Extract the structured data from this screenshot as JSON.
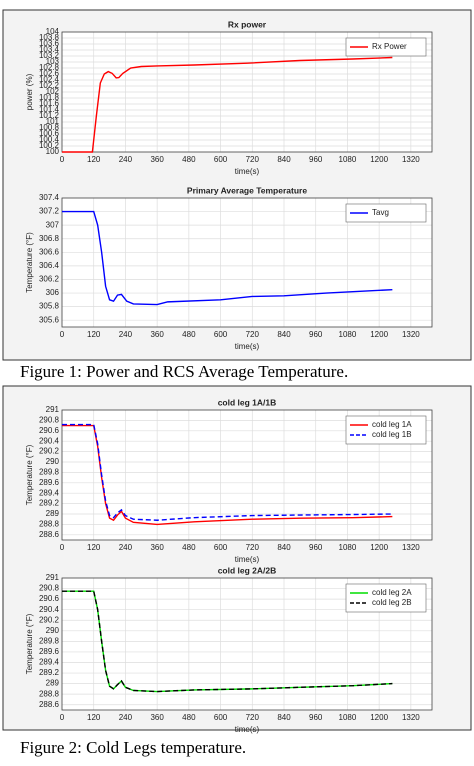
{
  "captions": [
    "Figure 1: Power and RCS Average Temperature.",
    "Figure 2: Cold Legs temperature."
  ],
  "chart_data": [
    {
      "type": "line",
      "title": "Rx power",
      "xlabel": "time(s)",
      "ylabel": "power (%)",
      "x": [
        0,
        115,
        130,
        145,
        160,
        175,
        190,
        205,
        215,
        230,
        260,
        300,
        360,
        500,
        700,
        900,
        1100,
        1250
      ],
      "series": [
        {
          "name": "Rx Power",
          "color": "#ff0000",
          "values": [
            100,
            100,
            101.2,
            102.3,
            102.6,
            102.68,
            102.62,
            102.47,
            102.48,
            102.62,
            102.8,
            102.85,
            102.87,
            102.9,
            102.96,
            103.05,
            103.1,
            103.15
          ]
        }
      ],
      "xlim": [
        0,
        1400
      ],
      "xticks": [
        0,
        120,
        240,
        360,
        480,
        600,
        720,
        840,
        960,
        1080,
        1200,
        1320
      ],
      "ylim": [
        100,
        104
      ],
      "yticks": [
        100,
        100.2,
        100.4,
        100.6,
        100.8,
        101,
        101.2,
        101.4,
        101.6,
        101.8,
        102,
        102.2,
        102.4,
        102.6,
        102.8,
        103,
        103.2,
        103.4,
        103.6,
        103.8,
        104
      ],
      "grid": true,
      "legend": "top-right"
    },
    {
      "type": "line",
      "title": "Primary Average Temperature",
      "xlabel": "time(s)",
      "ylabel": "Temperature (°F)",
      "x": [
        0,
        120,
        135,
        150,
        165,
        180,
        195,
        210,
        225,
        245,
        270,
        360,
        400,
        600,
        720,
        840,
        1000,
        1250
      ],
      "series": [
        {
          "name": "Tavg",
          "color": "#0000ff",
          "values": [
            307.2,
            307.2,
            307.0,
            306.6,
            306.1,
            305.9,
            305.88,
            305.97,
            305.98,
            305.88,
            305.84,
            305.83,
            305.87,
            305.9,
            305.95,
            305.96,
            306,
            306.05
          ]
        }
      ],
      "xlim": [
        0,
        1400
      ],
      "xticks": [
        0,
        120,
        240,
        360,
        480,
        600,
        720,
        840,
        960,
        1080,
        1200,
        1320
      ],
      "ylim": [
        305.5,
        307.4
      ],
      "yticks": [
        305.6,
        305.8,
        306,
        306.2,
        306.4,
        306.6,
        306.8,
        307,
        307.2,
        307.4
      ],
      "grid": true,
      "legend": "top-right"
    },
    {
      "type": "line",
      "title": "cold leg 1A/1B",
      "xlabel": "time(s)",
      "ylabel": "Temperature (°F)",
      "x": [
        0,
        120,
        135,
        150,
        165,
        180,
        195,
        210,
        225,
        240,
        270,
        360,
        500,
        720,
        900,
        1100,
        1250
      ],
      "series": [
        {
          "name": "cold leg 1A",
          "color": "#ff0000",
          "style": "solid",
          "values": [
            290.7,
            290.7,
            290.3,
            289.7,
            289.2,
            288.92,
            288.88,
            288.98,
            289.05,
            288.92,
            288.84,
            288.8,
            288.85,
            288.9,
            288.92,
            288.93,
            288.95
          ]
        },
        {
          "name": "cold leg 1B",
          "color": "#0000ff",
          "style": "dashed",
          "values": [
            290.72,
            290.72,
            290.35,
            289.75,
            289.25,
            288.97,
            288.93,
            289.02,
            289.08,
            288.97,
            288.9,
            288.88,
            288.93,
            288.97,
            288.98,
            288.99,
            289
          ]
        }
      ],
      "xlim": [
        0,
        1400
      ],
      "xticks": [
        0,
        120,
        240,
        360,
        480,
        600,
        720,
        840,
        960,
        1080,
        1200,
        1320
      ],
      "ylim": [
        288.5,
        291
      ],
      "yticks": [
        288.6,
        288.8,
        289,
        289.2,
        289.4,
        289.6,
        289.8,
        290,
        290.2,
        290.4,
        290.6,
        290.8,
        291
      ],
      "grid": true,
      "legend": "top-right"
    },
    {
      "type": "line",
      "title": "cold leg 2A/2B",
      "xlabel": "time(s)",
      "ylabel": "Temperature (°F)",
      "x": [
        0,
        120,
        135,
        150,
        165,
        180,
        195,
        210,
        225,
        240,
        270,
        360,
        500,
        720,
        900,
        1100,
        1250
      ],
      "series": [
        {
          "name": "cold leg 2A",
          "color": "#00dd00",
          "style": "solid",
          "values": [
            290.75,
            290.75,
            290.4,
            289.8,
            289.25,
            288.95,
            288.9,
            288.98,
            289.05,
            288.93,
            288.87,
            288.85,
            288.88,
            288.9,
            288.93,
            288.96,
            289
          ]
        },
        {
          "name": "cold leg 2B",
          "color": "#000000",
          "style": "dashed",
          "values": [
            290.75,
            290.75,
            290.4,
            289.8,
            289.25,
            288.95,
            288.9,
            288.98,
            289.05,
            288.93,
            288.87,
            288.85,
            288.88,
            288.9,
            288.93,
            288.96,
            289
          ]
        }
      ],
      "xlim": [
        0,
        1400
      ],
      "xticks": [
        0,
        120,
        240,
        360,
        480,
        600,
        720,
        840,
        960,
        1080,
        1200,
        1320
      ],
      "ylim": [
        288.5,
        291
      ],
      "yticks": [
        288.6,
        288.8,
        289,
        289.2,
        289.4,
        289.6,
        289.8,
        290,
        290.2,
        290.4,
        290.6,
        290.8,
        291
      ],
      "grid": true,
      "legend": "top-right"
    }
  ]
}
